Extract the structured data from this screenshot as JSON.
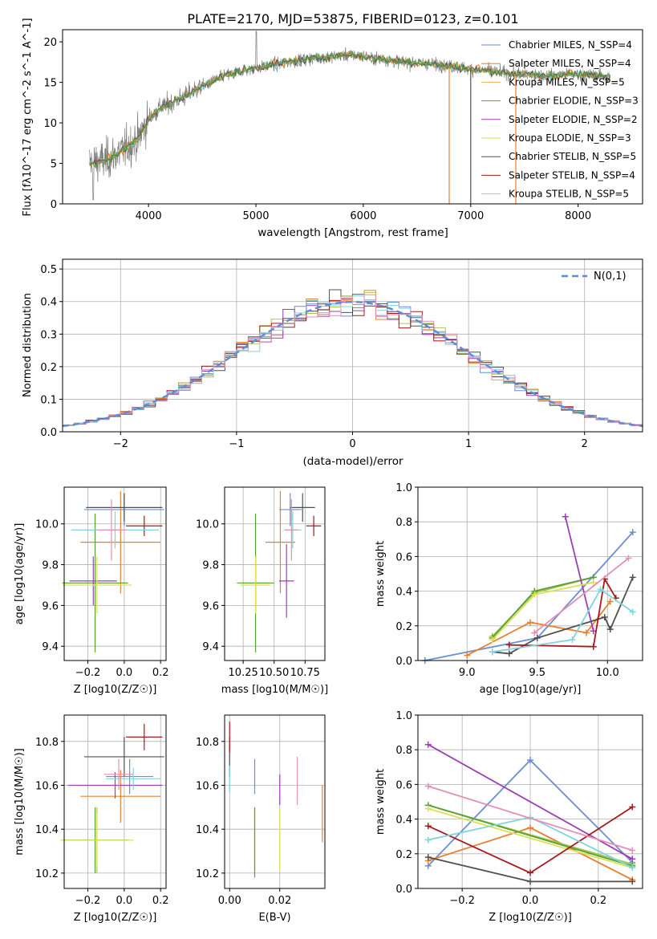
{
  "colors": [
    "#6a8fd4",
    "#e8802f",
    "#a2ca4b",
    "#5a9e3a",
    "#9b3fb5",
    "#dde04f",
    "#505050",
    "#a8191d",
    "#7fd4dc",
    "#e48fb8",
    "#f0b04a"
  ],
  "chart_data": [
    {
      "type": "line",
      "title": "PLATE=2170, MJD=53875, FIBERID=0123, z=0.101",
      "xlabel": "wavelength [Angstrom, rest frame]",
      "ylabel": "Flux [fλ10^-17 erg cm^-2 s^-1 A^-1]",
      "xlim": [
        3200,
        8600
      ],
      "ylim": [
        0,
        21.5
      ],
      "xticks": [
        "4000",
        "5000",
        "6000",
        "7000",
        "8000"
      ],
      "yticks": [
        "0",
        "5",
        "10",
        "15",
        "20"
      ],
      "legend_placement": "right",
      "series": [
        {
          "name": "Chabrier MILES, N_SSP=4"
        },
        {
          "name": "Salpeter MILES, N_SSP=4"
        },
        {
          "name": "Kroupa MILES, N_SSP=5"
        },
        {
          "name": "Chabrier ELODIE, N_SSP=3"
        },
        {
          "name": "Salpeter ELODIE, N_SSP=2"
        },
        {
          "name": "Kroupa ELODIE, N_SSP=3"
        },
        {
          "name": "Chabrier STELIB, N_SSP=5"
        },
        {
          "name": "Salpeter STELIB, N_SSP=4"
        },
        {
          "name": "Kroupa STELIB, N_SSP=5"
        }
      ],
      "continuum": [
        [
          3450,
          5.0
        ],
        [
          3600,
          5.4
        ],
        [
          3750,
          6.5
        ],
        [
          3900,
          8.0
        ],
        [
          4000,
          10.5
        ],
        [
          4100,
          11.8
        ],
        [
          4300,
          13.0
        ],
        [
          4500,
          14.5
        ],
        [
          4700,
          15.8
        ],
        [
          4900,
          16.5
        ],
        [
          5100,
          17.0
        ],
        [
          5300,
          17.5
        ],
        [
          5500,
          17.9
        ],
        [
          5700,
          18.2
        ],
        [
          5900,
          18.4
        ],
        [
          6100,
          18.0
        ],
        [
          6300,
          17.6
        ],
        [
          6500,
          17.4
        ],
        [
          6700,
          17.2
        ],
        [
          6900,
          16.8
        ],
        [
          7100,
          16.5
        ],
        [
          7300,
          16.2
        ],
        [
          7500,
          16.0
        ],
        [
          7700,
          15.8
        ],
        [
          7900,
          16.0
        ],
        [
          8100,
          15.9
        ],
        [
          8300,
          15.7
        ]
      ]
    },
    {
      "type": "bar",
      "title": "",
      "xlabel": "(data-model)/error",
      "ylabel": "Normed distribution",
      "xlim": [
        -2.5,
        2.5
      ],
      "ylim": [
        0,
        0.53
      ],
      "xticks": [
        "−2",
        "−1",
        "0",
        "1",
        "2"
      ],
      "yticks": [
        "0.0",
        "0.1",
        "0.2",
        "0.3",
        "0.4",
        "0.5"
      ],
      "grid": true,
      "legend_placement": "top-right",
      "reference_curve": "N(0,1)"
    },
    {
      "type": "scatter",
      "xlabel": "Z [log10(Z/Z☉)]",
      "ylabel": "age [log10(age/yr)]",
      "xlim": [
        -0.33,
        0.23
      ],
      "ylim": [
        9.33,
        10.18
      ],
      "xticks": [
        "−0.2",
        "0.0",
        "0.2"
      ],
      "yticks": [
        "9.4",
        "9.6",
        "9.8",
        "10.0"
      ],
      "points": [
        {
          "x": 0.0,
          "y": 10.07,
          "xerr": 0.22,
          "yerr": 0.08
        },
        {
          "x": -0.02,
          "y": 9.91,
          "xerr": 0.22,
          "yerr": 0.25
        },
        {
          "x": -0.16,
          "y": 9.71,
          "xerr": 0.18,
          "yerr": 0.13
        },
        {
          "x": -0.16,
          "y": 9.71,
          "xerr": 0.18,
          "yerr": 0.34
        },
        {
          "x": -0.17,
          "y": 9.72,
          "xerr": 0.13,
          "yerr": 0.12
        },
        {
          "x": -0.15,
          "y": 9.7,
          "xerr": 0.19,
          "yerr": 0.14
        },
        {
          "x": 0.0,
          "y": 10.08,
          "xerr": 0.21,
          "yerr": 0.07
        },
        {
          "x": 0.11,
          "y": 9.99,
          "xerr": 0.1,
          "yerr": 0.05
        },
        {
          "x": -0.05,
          "y": 9.97,
          "xerr": 0.24,
          "yerr": 0.09
        },
        {
          "x": -0.07,
          "y": 9.97,
          "xerr": 0.08,
          "yerr": 0.15
        }
      ]
    },
    {
      "type": "scatter",
      "xlabel": "mass [log10(M/M☉)]",
      "ylabel": "",
      "xlim": [
        10.1,
        10.91
      ],
      "ylim": [
        9.33,
        10.18
      ],
      "xticks": [
        "10.25",
        "10.50",
        "10.75"
      ],
      "yticks": [
        "9.4",
        "9.6",
        "9.8",
        "10.0"
      ],
      "points": [
        {
          "x": 10.63,
          "y": 10.07,
          "xerr": 0.09,
          "yerr": 0.08
        },
        {
          "x": 10.55,
          "y": 9.91,
          "xerr": 0.12,
          "yerr": 0.25
        },
        {
          "x": 10.35,
          "y": 9.71,
          "xerr": 0.12,
          "yerr": 0.13
        },
        {
          "x": 10.35,
          "y": 9.71,
          "xerr": 0.15,
          "yerr": 0.34
        },
        {
          "x": 10.6,
          "y": 9.72,
          "xerr": 0.06,
          "yerr": 0.18
        },
        {
          "x": 10.35,
          "y": 9.7,
          "xerr": 0.12,
          "yerr": 0.14
        },
        {
          "x": 10.73,
          "y": 10.08,
          "xerr": 0.1,
          "yerr": 0.07
        },
        {
          "x": 10.82,
          "y": 9.99,
          "xerr": 0.06,
          "yerr": 0.05
        },
        {
          "x": 10.65,
          "y": 9.97,
          "xerr": 0.07,
          "yerr": 0.09
        },
        {
          "x": 10.64,
          "y": 9.97,
          "xerr": 0.05,
          "yerr": 0.15
        }
      ]
    },
    {
      "type": "line",
      "xlabel": "age [log10(age/yr)]",
      "ylabel": "mass weight",
      "xlim": [
        8.65,
        10.25
      ],
      "ylim": [
        0.0,
        1.0
      ],
      "xticks": [
        "9.0",
        "9.5",
        "10.0"
      ],
      "yticks": [
        "0.0",
        "0.2",
        "0.4",
        "0.6",
        "0.8",
        "1.0"
      ],
      "grid": true,
      "series": [
        {
          "x": [
            8.7,
            9.5,
            10.18
          ],
          "y": [
            0.0,
            0.13,
            0.74
          ]
        },
        {
          "x": [
            9.0,
            9.45,
            9.85,
            10.02
          ],
          "y": [
            0.03,
            0.22,
            0.16,
            0.34
          ]
        },
        {
          "x": [
            9.18,
            9.48,
            9.9
          ],
          "y": [
            0.14,
            0.39,
            0.48
          ]
        },
        {
          "x": [
            9.18,
            9.48,
            9.9
          ],
          "y": [
            0.13,
            0.4,
            0.48
          ]
        },
        {
          "x": [
            9.7,
            9.9
          ],
          "y": [
            0.83,
            0.17
          ]
        },
        {
          "x": [
            9.18,
            9.48,
            9.9
          ],
          "y": [
            0.12,
            0.38,
            0.45
          ]
        },
        {
          "x": [
            9.18,
            9.3,
            9.5,
            9.98,
            10.02,
            10.18
          ],
          "y": [
            0.05,
            0.04,
            0.13,
            0.25,
            0.18,
            0.48
          ]
        },
        {
          "x": [
            9.3,
            9.9,
            9.98,
            10.06
          ],
          "y": [
            0.09,
            0.08,
            0.47,
            0.36
          ]
        },
        {
          "x": [
            9.18,
            9.75,
            9.95,
            10.18
          ],
          "y": [
            0.05,
            0.12,
            0.41,
            0.28
          ]
        },
        {
          "x": [
            9.48,
            10.15
          ],
          "y": [
            0.16,
            0.59
          ]
        }
      ]
    },
    {
      "type": "scatter",
      "xlabel": "Z [log10(Z/Z☉)]",
      "ylabel": "mass [log10(M/M☉)]",
      "xlim": [
        -0.33,
        0.23
      ],
      "ylim": [
        10.13,
        10.92
      ],
      "xticks": [
        "−0.2",
        "0.0",
        "0.2"
      ],
      "yticks": [
        "10.2",
        "10.4",
        "10.6",
        "10.8"
      ],
      "points": [
        {
          "x": 0.03,
          "y": 10.64,
          "xerr": 0.13,
          "yerr": 0.08
        },
        {
          "x": -0.02,
          "y": 10.55,
          "xerr": 0.22,
          "yerr": 0.12
        },
        {
          "x": -0.15,
          "y": 10.35,
          "xerr": 0.18,
          "yerr": 0.15
        },
        {
          "x": -0.16,
          "y": 10.35,
          "xerr": 0.18,
          "yerr": 0.15
        },
        {
          "x": -0.05,
          "y": 10.6,
          "xerr": 0.26,
          "yerr": 0.06
        },
        {
          "x": -0.15,
          "y": 10.35,
          "xerr": 0.2,
          "yerr": 0.12
        },
        {
          "x": 0.0,
          "y": 10.73,
          "xerr": 0.22,
          "yerr": 0.09
        },
        {
          "x": 0.11,
          "y": 10.82,
          "xerr": 0.1,
          "yerr": 0.06
        },
        {
          "x": 0.05,
          "y": 10.63,
          "xerr": 0.15,
          "yerr": 0.05
        },
        {
          "x": -0.03,
          "y": 10.65,
          "xerr": 0.08,
          "yerr": 0.07
        }
      ]
    },
    {
      "type": "scatter",
      "xlabel": "E(B-V)",
      "ylabel": "",
      "xlim": [
        -0.002,
        0.038
      ],
      "ylim": [
        10.13,
        10.92
      ],
      "xticks": [
        "0.00",
        "0.02"
      ],
      "yticks": [
        "10.2",
        "10.4",
        "10.6",
        "10.8"
      ],
      "points": [
        {
          "x": 0.01,
          "y": 10.64,
          "yerr": 0.08
        },
        {
          "x": 0.037,
          "y": 10.47,
          "yerr": 0.13
        },
        {
          "x": 0.01,
          "y": 10.35,
          "yerr": 0.15
        },
        {
          "x": 0.01,
          "y": 10.34,
          "yerr": 0.16
        },
        {
          "x": 0.02,
          "y": 10.58,
          "yerr": 0.07
        },
        {
          "x": 0.02,
          "y": 10.35,
          "yerr": 0.14
        },
        {
          "x": 0.0,
          "y": 10.73,
          "yerr": 0.09
        },
        {
          "x": 0.0,
          "y": 10.82,
          "yerr": 0.07
        },
        {
          "x": 0.0,
          "y": 10.63,
          "yerr": 0.06
        },
        {
          "x": 0.027,
          "y": 10.62,
          "yerr": 0.11
        }
      ]
    },
    {
      "type": "line",
      "xlabel": "Z [log10(Z/Z☉)]",
      "ylabel": "mass weight",
      "xlim": [
        -0.33,
        0.33
      ],
      "ylim": [
        0.0,
        1.0
      ],
      "xticks": [
        "−0.2",
        "0.0",
        "0.2"
      ],
      "yticks": [
        "0.0",
        "0.2",
        "0.4",
        "0.6",
        "0.8",
        "1.0"
      ],
      "grid": true,
      "series": [
        {
          "x": [
            -0.3,
            0.0,
            0.3
          ],
          "y": [
            0.13,
            0.74,
            0.15
          ]
        },
        {
          "x": [
            -0.3,
            0.0,
            0.3
          ],
          "y": [
            0.16,
            0.35,
            0.05
          ]
        },
        {
          "x": [
            -0.3,
            0.3
          ],
          "y": [
            0.48,
            0.14
          ]
        },
        {
          "x": [
            -0.3,
            0.3
          ],
          "y": [
            0.48,
            0.13
          ]
        },
        {
          "x": [
            -0.3,
            0.3
          ],
          "y": [
            0.83,
            0.17
          ]
        },
        {
          "x": [
            -0.3,
            0.3
          ],
          "y": [
            0.46,
            0.12
          ]
        },
        {
          "x": [
            -0.3,
            0.0,
            0.3
          ],
          "y": [
            0.18,
            0.04,
            0.04
          ]
        },
        {
          "x": [
            -0.3,
            0.0,
            0.3
          ],
          "y": [
            0.36,
            0.09,
            0.47
          ]
        },
        {
          "x": [
            -0.3,
            0.0,
            0.3
          ],
          "y": [
            0.28,
            0.41,
            0.12
          ]
        },
        {
          "x": [
            -0.3,
            0.3
          ],
          "y": [
            0.59,
            0.22
          ]
        }
      ]
    }
  ]
}
